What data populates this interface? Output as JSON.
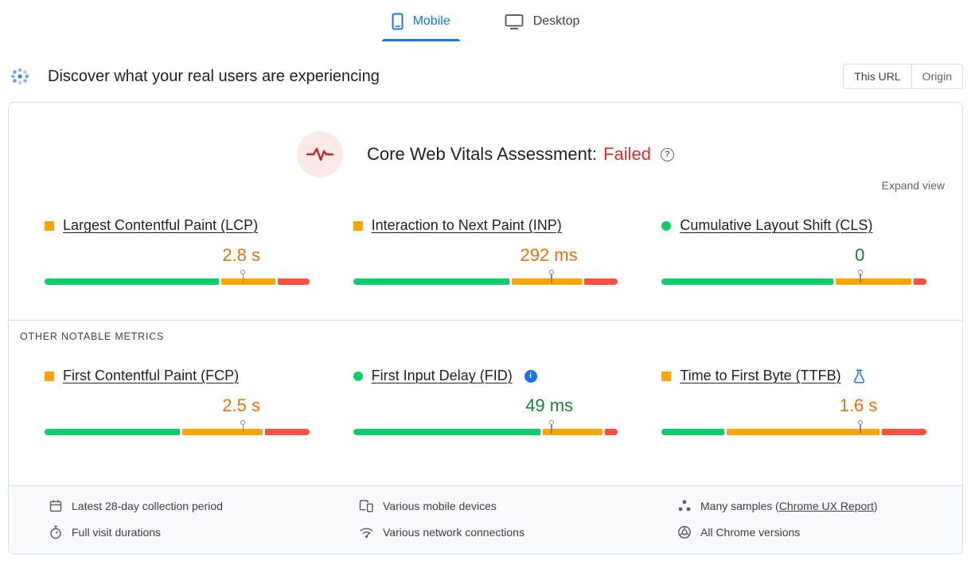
{
  "colors": {
    "accent_blue": "#1a73e8",
    "failed_red": "#d93025",
    "bar_good": "#0cce6b",
    "bar_ni": "#ffa400",
    "bar_poor": "#ff4e42",
    "text_good": "#188038",
    "text_ni": "#e8710a",
    "icon_good": "#0cce6b",
    "icon_ni": "#ffa400"
  },
  "tabs": [
    {
      "label": "Mobile",
      "active": true
    },
    {
      "label": "Desktop",
      "active": false
    }
  ],
  "field_header": {
    "title": "Discover what your real users are experiencing",
    "scope_toggle": [
      {
        "label": "This URL",
        "selected": true
      },
      {
        "label": "Origin",
        "selected": false
      }
    ]
  },
  "assessment": {
    "title": "Core Web Vitals Assessment:",
    "status": "Failed",
    "expand_label": "Expand view"
  },
  "other_metrics_label": "OTHER NOTABLE METRICS",
  "metrics": {
    "core": [
      {
        "name": "Largest Contentful Paint (LCP)",
        "value": "2.8 s",
        "status": "needs-improvement",
        "distribution": {
          "good": 67,
          "needs_improvement": 21,
          "poor": 12
        },
        "p75_marker_pct": 75
      },
      {
        "name": "Interaction to Next Paint (INP)",
        "value": "292 ms",
        "status": "needs-improvement",
        "distribution": {
          "good": 60,
          "needs_improvement": 27,
          "poor": 13
        },
        "p75_marker_pct": 75
      },
      {
        "name": "Cumulative Layout Shift (CLS)",
        "value": "0",
        "status": "good",
        "distribution": {
          "good": 66,
          "needs_improvement": 29,
          "poor": 5
        },
        "p75_marker_pct": 75
      }
    ],
    "other": [
      {
        "name": "First Contentful Paint (FCP)",
        "value": "2.5 s",
        "status": "needs-improvement",
        "distribution": {
          "good": 52,
          "needs_improvement": 31,
          "poor": 17
        },
        "p75_marker_pct": 75
      },
      {
        "name": "First Input Delay (FID)",
        "value": "49 ms",
        "status": "good",
        "has_info_icon": true,
        "distribution": {
          "good": 72,
          "needs_improvement": 23,
          "poor": 5
        },
        "p75_marker_pct": 75
      },
      {
        "name": "Time to First Byte (TTFB)",
        "value": "1.6 s",
        "status": "needs-improvement",
        "has_experiment_icon": true,
        "distribution": {
          "good": 24,
          "needs_improvement": 59,
          "poor": 17
        },
        "p75_marker_pct": 75
      }
    ]
  },
  "footer": {
    "items": [
      {
        "icon": "calendar-icon",
        "text": "Latest 28-day collection period"
      },
      {
        "icon": "devices-icon",
        "text": "Various mobile devices"
      },
      {
        "icon": "samples-icon",
        "pre": "Many samples (",
        "link": "Chrome UX Report",
        "post": ")"
      },
      {
        "icon": "timer-icon",
        "text": "Full visit durations"
      },
      {
        "icon": "network-icon",
        "text": "Various network connections"
      },
      {
        "icon": "chrome-icon",
        "text": "All Chrome versions"
      }
    ]
  }
}
